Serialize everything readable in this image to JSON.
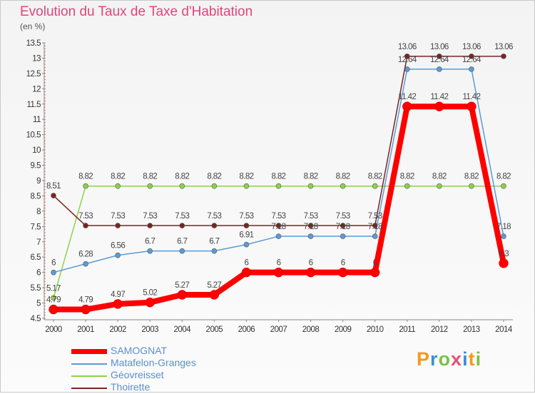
{
  "title": "Evolution du Taux de Taxe d'Habitation",
  "unit_label": "(en %)",
  "logo_text": "Proxiti",
  "chart_data": {
    "type": "line",
    "title": "Evolution du Taux de Taxe d'Habitation",
    "ylabel": "(en %)",
    "xlabel": "",
    "x": [
      "2000",
      "2001",
      "2002",
      "2003",
      "2004",
      "2005",
      "2006",
      "2007",
      "2008",
      "2009",
      "2010",
      "2011",
      "2012",
      "2013",
      "2014"
    ],
    "ylim": [
      4.5,
      13.5
    ],
    "yticks": [
      "4.5",
      "5",
      "5.5",
      "6",
      "6.5",
      "7",
      "7.5",
      "8",
      "8.5",
      "9",
      "9.5",
      "10",
      "10.5",
      "11",
      "11.5",
      "12",
      "12.5",
      "13",
      "13.5"
    ],
    "grid": false,
    "legend_position": "bottom-left",
    "series": [
      {
        "name": "SAMOGNAT",
        "color": "#ff0000",
        "values": [
          4.79,
          4.79,
          4.97,
          5.02,
          5.27,
          5.27,
          6,
          6,
          6,
          6,
          6,
          11.42,
          11.42,
          11.42,
          6.3
        ],
        "labels": [
          "4.79",
          "4.79",
          "4.97",
          "5.02",
          "5.27",
          "5.27",
          "6",
          "6",
          "6",
          "6",
          "6",
          "11.42",
          "11.42",
          "11.42",
          "6.3"
        ]
      },
      {
        "name": "Matafelon-Granges",
        "color": "#5b9bd5",
        "values": [
          6,
          6.28,
          6.56,
          6.7,
          6.7,
          6.7,
          6.91,
          7.18,
          7.18,
          7.18,
          7.18,
          12.64,
          12.64,
          12.64,
          7.18
        ],
        "labels": [
          "6",
          "6.28",
          "6.56",
          "6.7",
          "6.7",
          "6.7",
          "6.91",
          "7.18",
          "7.18",
          "7.18",
          "7.18",
          "12.64",
          "12.64",
          "12.64",
          "7.18"
        ]
      },
      {
        "name": "Géovreisset",
        "color": "#8ed14b",
        "values": [
          5.17,
          8.82,
          8.82,
          8.82,
          8.82,
          8.82,
          8.82,
          8.82,
          8.82,
          8.82,
          8.82,
          8.82,
          8.82,
          8.82,
          8.82
        ],
        "labels": [
          "5.17",
          "8.82",
          "8.82",
          "8.82",
          "8.82",
          "8.82",
          "8.82",
          "8.82",
          "8.82",
          "8.82",
          "8.82",
          "8.82",
          "8.82",
          "8.82",
          "8.82"
        ]
      },
      {
        "name": "Thoirette",
        "color": "#7a2424",
        "values": [
          8.51,
          7.53,
          7.53,
          7.53,
          7.53,
          7.53,
          7.53,
          7.53,
          7.53,
          7.53,
          7.53,
          13.06,
          13.06,
          13.06,
          13.06
        ],
        "labels": [
          "8.51",
          "7.53",
          "7.53",
          "7.53",
          "7.53",
          "7.53",
          "7.53",
          "7.53",
          "7.53",
          "7.53",
          "7.53",
          "13.06",
          "13.06",
          "13.06",
          "13.06"
        ]
      }
    ]
  }
}
